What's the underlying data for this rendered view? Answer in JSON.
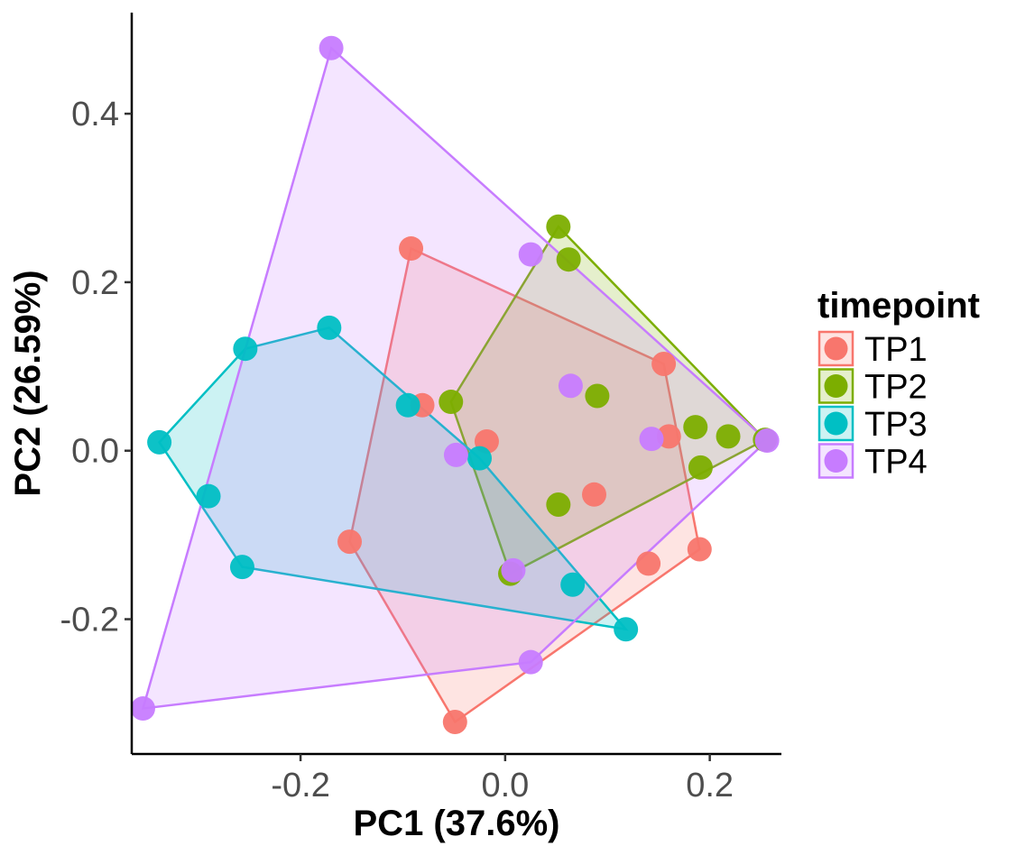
{
  "chart_data": {
    "type": "scatter",
    "title": "",
    "xlabel": "PC1 (37.6%)",
    "ylabel": "PC2 (26.59%)",
    "xlim": [
      -0.365,
      0.27
    ],
    "ylim": [
      -0.36,
      0.52
    ],
    "x_ticks": [
      -0.2,
      0.0,
      0.2
    ],
    "x_tick_labels": [
      "-0.2",
      "0.0",
      "0.2"
    ],
    "y_ticks": [
      -0.2,
      0.0,
      0.2,
      0.4
    ],
    "y_tick_labels": [
      "-0.2",
      "0.0",
      "0.2",
      "0.4"
    ],
    "grid": false,
    "hulls": true,
    "legend": {
      "title": "timepoint",
      "placement": "right"
    },
    "series": [
      {
        "name": "TP1",
        "color": "#F8766D",
        "x": [
          -0.092,
          -0.081,
          -0.018,
          -0.152,
          0.155,
          0.16,
          0.087,
          0.14,
          0.19,
          -0.049
        ],
        "y": [
          0.24,
          0.054,
          0.011,
          -0.108,
          0.103,
          0.017,
          -0.052,
          -0.134,
          -0.117,
          -0.322
        ]
      },
      {
        "name": "TP2",
        "color": "#7CAE00",
        "x": [
          0.052,
          0.062,
          -0.053,
          0.09,
          0.186,
          0.218,
          0.254,
          0.191,
          0.052,
          0.005
        ],
        "y": [
          0.266,
          0.227,
          0.058,
          0.065,
          0.028,
          0.017,
          0.013,
          -0.02,
          -0.064,
          -0.146
        ]
      },
      {
        "name": "TP3",
        "color": "#00BFC4",
        "x": [
          -0.338,
          -0.29,
          -0.254,
          -0.172,
          -0.095,
          -0.025,
          -0.257,
          0.066,
          0.118
        ],
        "y": [
          0.01,
          -0.054,
          0.121,
          0.146,
          0.054,
          -0.009,
          -0.138,
          -0.159,
          -0.212
        ]
      },
      {
        "name": "TP4",
        "color": "#C77CFF",
        "x": [
          -0.17,
          0.025,
          0.064,
          -0.048,
          0.143,
          0.256,
          0.008,
          0.025,
          -0.354
        ],
        "y": [
          0.478,
          0.233,
          0.077,
          -0.005,
          0.014,
          0.012,
          -0.142,
          -0.251,
          -0.306
        ]
      }
    ]
  }
}
